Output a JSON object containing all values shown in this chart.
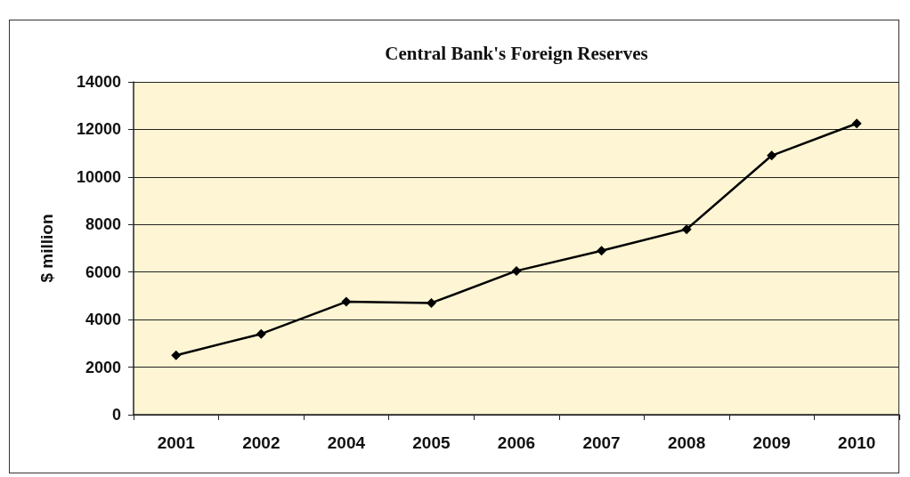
{
  "chart_data": {
    "type": "line",
    "title": "Central Bank's Foreign Reserves",
    "ylabel": "$ million",
    "categories": [
      "2001",
      "2002",
      "2004",
      "2005",
      "2006",
      "2007",
      "2008",
      "2009",
      "2010"
    ],
    "series": [
      {
        "color": "#000000",
        "values": [
          2500,
          3400,
          4750,
          4700,
          6050,
          6900,
          7800,
          10900,
          12250
        ]
      }
    ],
    "ylim": [
      0,
      14000
    ],
    "yticks": [
      0,
      2000,
      4000,
      6000,
      8000,
      10000,
      12000,
      14000
    ],
    "grid": "y",
    "marker": "diamond",
    "line_style": "solid"
  }
}
